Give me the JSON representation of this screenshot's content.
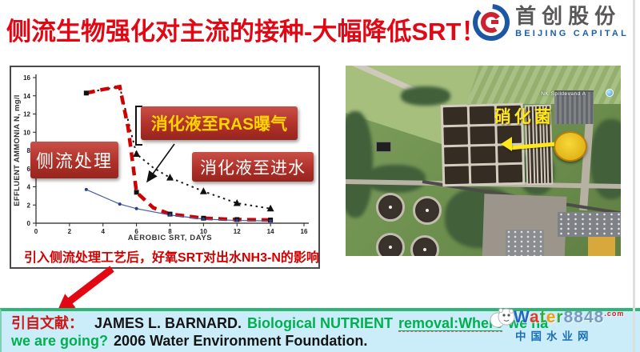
{
  "slide": {
    "title": "侧流生物强化对主流的接种-大幅降低SRT！",
    "logo": {
      "cn": "首创股份",
      "en": "BEIJING CAPITAL"
    },
    "chart_caption": "引入侧流处理工艺后，好氧SRT对出水NH3-N的影响",
    "annotations": {
      "sideflow": "侧流处理",
      "ras": "消化液至RAS曝气",
      "influent": "消化液至进水"
    },
    "satellite": {
      "map_label": "NK Spildevand A",
      "callout": "硝化菌"
    },
    "citation": {
      "prefix": "引自文献：",
      "author": "JAMES L. BARNARD.",
      "green_lead": "Biological NUTRIENT",
      "underlined": "removal:Where",
      "green_tail": "we ha",
      "line2_green": "we are going?",
      "line2_black": "2006 Water Environment Foundation."
    },
    "watermark": {
      "letters": [
        {
          "ch": "W",
          "color": "#1f64c8"
        },
        {
          "ch": "a",
          "color": "#e03a2f"
        },
        {
          "ch": "t",
          "color": "#35a93c"
        },
        {
          "ch": "e",
          "color": "#f39c12"
        },
        {
          "ch": "r",
          "color": "#35a93c"
        },
        {
          "ch": "8",
          "color": "#7a9bbf"
        },
        {
          "ch": "8",
          "color": "#7a9bbf"
        },
        {
          "ch": "4",
          "color": "#7a9bbf"
        },
        {
          "ch": "8",
          "color": "#7a9bbf"
        }
      ],
      "com": ".com",
      "cn": "中国水业网"
    },
    "colors": {
      "title_red": "#e30613",
      "annotation_box_red": "#b03129",
      "citation_bg": "#cbedf9",
      "citation_border_green": "#2fb574",
      "citation_text_green": "#00b050",
      "highlight_yellow": "#ffe81a",
      "logo_blue": "#1b5faa"
    }
  },
  "chart_data": {
    "type": "line",
    "title": "",
    "xlabel": "AEROBIC SRT, DAYS",
    "ylabel": "EFFLUENT AMMONIA N, mg/l",
    "xlim": [
      0,
      16
    ],
    "ylim": [
      0,
      16
    ],
    "xticks": [
      0,
      2,
      4,
      6,
      8,
      10,
      12,
      14,
      16
    ],
    "yticks": [
      0,
      2,
      4,
      6,
      8,
      10,
      12,
      14,
      16
    ],
    "grid": false,
    "legend": "annotated boxes on plot",
    "series": [
      {
        "name": "消化液至进水",
        "style": "dotted-black-triangles",
        "x": [
          3,
          4,
          5,
          5.4,
          6,
          7,
          8,
          10,
          12,
          14
        ],
        "y": [
          14.3,
          14.7,
          15,
          12,
          7.6,
          6.1,
          5.0,
          3.5,
          2.2,
          1.6
        ],
        "marker_x": [
          6,
          8,
          10,
          12,
          14
        ]
      },
      {
        "name": "消化液至RAS曝气",
        "style": "dashed-red",
        "x": [
          3,
          4,
          5,
          5.5,
          6,
          7,
          8,
          10,
          12,
          14
        ],
        "y": [
          14.3,
          14.7,
          15,
          10.5,
          3.4,
          1.7,
          1.0,
          0.55,
          0.4,
          0.35
        ],
        "marker_x": [
          3,
          6,
          8,
          10,
          12,
          14
        ]
      },
      {
        "name": "侧流处理",
        "style": "solid-blue",
        "x": [
          3,
          5,
          6,
          8,
          10,
          12,
          14
        ],
        "y": [
          3.7,
          2.1,
          1.6,
          0.9,
          0.45,
          0.3,
          0.25
        ],
        "marker_x": [
          3,
          5,
          6,
          8,
          10,
          12,
          14
        ]
      }
    ]
  }
}
